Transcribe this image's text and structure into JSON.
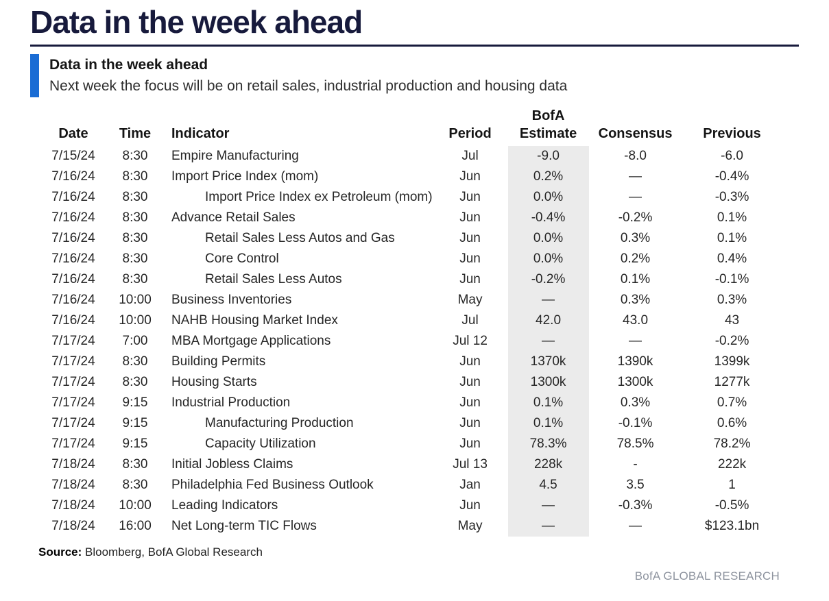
{
  "page": {
    "title": "Data in the week ahead",
    "callout": {
      "heading": "Data in the week ahead",
      "description": "Next week the focus will be on retail sales, industrial production and housing data"
    },
    "source_label": "Source:",
    "source_text": " Bloomberg, BofA Global Research",
    "footer_brand": "BofA GLOBAL RESEARCH"
  },
  "colors": {
    "accent_blue": "#1a6cd4",
    "title_navy": "#171a3c",
    "estimate_highlight": "#ebebeb",
    "footer_gray": "#8d939e"
  },
  "table": {
    "columns": [
      "Date",
      "Time",
      "Indicator",
      "Period",
      "BofA\nEstimate",
      "Consensus",
      "Previous"
    ],
    "rows": [
      {
        "date": "7/15/24",
        "time": "8:30",
        "indicator": "Empire Manufacturing",
        "indent": 0,
        "period": "Jul",
        "estimate": "-9.0",
        "consensus": "-8.0",
        "previous": "-6.0"
      },
      {
        "date": "7/16/24",
        "time": "8:30",
        "indicator": "Import Price Index (mom)",
        "indent": 0,
        "period": "Jun",
        "estimate": "0.2%",
        "consensus": "—",
        "previous": "-0.4%"
      },
      {
        "date": "7/16/24",
        "time": "8:30",
        "indicator": "Import Price Index ex Petroleum (mom)",
        "indent": 1,
        "period": "Jun",
        "estimate": "0.0%",
        "consensus": "—",
        "previous": "-0.3%"
      },
      {
        "date": "7/16/24",
        "time": "8:30",
        "indicator": "Advance Retail Sales",
        "indent": 0,
        "period": "Jun",
        "estimate": "-0.4%",
        "consensus": "-0.2%",
        "previous": "0.1%"
      },
      {
        "date": "7/16/24",
        "time": "8:30",
        "indicator": "Retail Sales Less Autos and Gas",
        "indent": 1,
        "period": "Jun",
        "estimate": "0.0%",
        "consensus": "0.3%",
        "previous": "0.1%"
      },
      {
        "date": "7/16/24",
        "time": "8:30",
        "indicator": "Core Control",
        "indent": 1,
        "period": "Jun",
        "estimate": "0.0%",
        "consensus": "0.2%",
        "previous": "0.4%"
      },
      {
        "date": "7/16/24",
        "time": "8:30",
        "indicator": "Retail Sales Less Autos",
        "indent": 1,
        "period": "Jun",
        "estimate": "-0.2%",
        "consensus": "0.1%",
        "previous": "-0.1%"
      },
      {
        "date": "7/16/24",
        "time": "10:00",
        "indicator": "Business Inventories",
        "indent": 0,
        "period": "May",
        "estimate": "—",
        "consensus": "0.3%",
        "previous": "0.3%"
      },
      {
        "date": "7/16/24",
        "time": "10:00",
        "indicator": "NAHB Housing Market Index",
        "indent": 0,
        "period": "Jul",
        "estimate": "42.0",
        "consensus": "43.0",
        "previous": "43"
      },
      {
        "date": "7/17/24",
        "time": "7:00",
        "indicator": "MBA Mortgage Applications",
        "indent": 0,
        "period": "Jul 12",
        "estimate": "—",
        "consensus": "—",
        "previous": "-0.2%"
      },
      {
        "date": "7/17/24",
        "time": "8:30",
        "indicator": "Building Permits",
        "indent": 0,
        "period": "Jun",
        "estimate": "1370k",
        "consensus": "1390k",
        "previous": "1399k"
      },
      {
        "date": "7/17/24",
        "time": "8:30",
        "indicator": "Housing Starts",
        "indent": 0,
        "period": "Jun",
        "estimate": "1300k",
        "consensus": "1300k",
        "previous": "1277k"
      },
      {
        "date": "7/17/24",
        "time": "9:15",
        "indicator": "Industrial Production",
        "indent": 0,
        "period": "Jun",
        "estimate": "0.1%",
        "consensus": "0.3%",
        "previous": "0.7%"
      },
      {
        "date": "7/17/24",
        "time": "9:15",
        "indicator": "Manufacturing Production",
        "indent": 1,
        "period": "Jun",
        "estimate": "0.1%",
        "consensus": "-0.1%",
        "previous": "0.6%"
      },
      {
        "date": "7/17/24",
        "time": "9:15",
        "indicator": "Capacity Utilization",
        "indent": 1,
        "period": "Jun",
        "estimate": "78.3%",
        "consensus": "78.5%",
        "previous": "78.2%"
      },
      {
        "date": "7/18/24",
        "time": "8:30",
        "indicator": "Initial Jobless Claims",
        "indent": 0,
        "period": "Jul 13",
        "estimate": "228k",
        "consensus": "-",
        "previous": "222k"
      },
      {
        "date": "7/18/24",
        "time": "8:30",
        "indicator": "Philadelphia Fed Business Outlook",
        "indent": 0,
        "period": "Jan",
        "estimate": "4.5",
        "consensus": "3.5",
        "previous": "1"
      },
      {
        "date": "7/18/24",
        "time": "10:00",
        "indicator": "Leading Indicators",
        "indent": 0,
        "period": "Jun",
        "estimate": "—",
        "consensus": "-0.3%",
        "previous": "-0.5%"
      },
      {
        "date": "7/18/24",
        "time": "16:00",
        "indicator": "Net Long-term TIC Flows",
        "indent": 0,
        "period": "May",
        "estimate": "—",
        "consensus": "—",
        "previous": "$123.1bn"
      }
    ]
  }
}
